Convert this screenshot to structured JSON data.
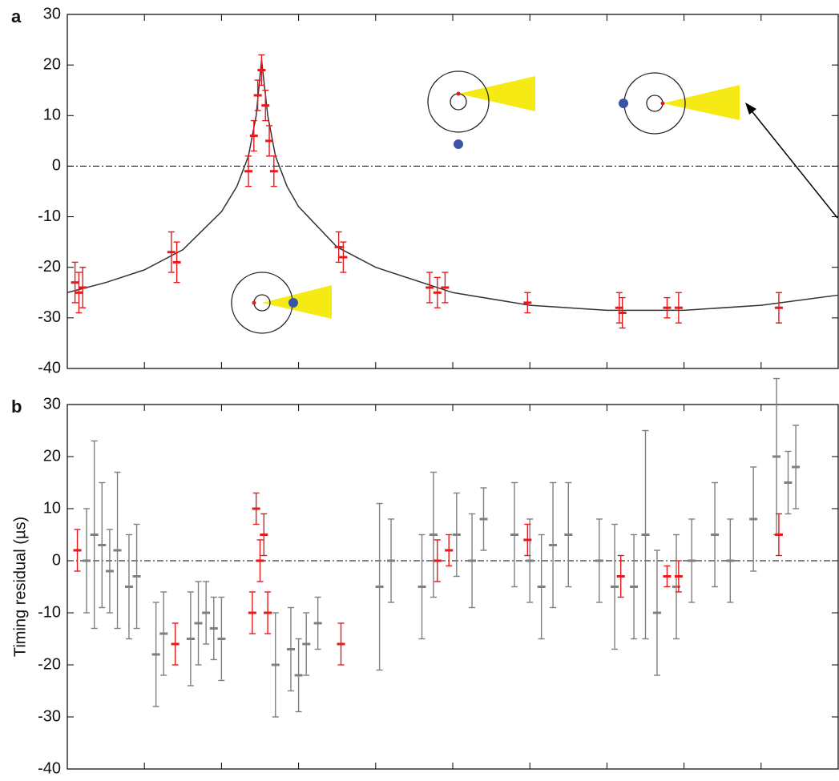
{
  "chart_data": [
    {
      "type": "scatter",
      "panel_label": "a",
      "xlim": [
        0,
        10
      ],
      "xticks": [
        1,
        2,
        3,
        4,
        5,
        6,
        7,
        8,
        9
      ],
      "ylim": [
        -40,
        30
      ],
      "yticks": [
        -40,
        -30,
        -20,
        -10,
        0,
        10,
        20,
        30
      ],
      "series": [
        {
          "mark": "line",
          "color": "#333333",
          "x": [
            0,
            0.5,
            1,
            1.5,
            2,
            2.2,
            2.35,
            2.45,
            2.52,
            2.6,
            2.7,
            2.85,
            3,
            3.5,
            4,
            5,
            6,
            7,
            8,
            9,
            10
          ],
          "values": [
            -25,
            -23,
            -20.5,
            -16.5,
            -9,
            -4,
            2,
            10,
            21,
            10,
            2,
            -4,
            -8,
            -16,
            -20,
            -25,
            -27.5,
            -28.5,
            -28.5,
            -27.5,
            -25.5
          ]
        },
        {
          "mark": "errorbar",
          "color": "#e8191c",
          "x": [
            0.1,
            0.15,
            0.2,
            1.35,
            1.42,
            2.35,
            2.42,
            2.47,
            2.52,
            2.57,
            2.62,
            2.68,
            3.52,
            3.58,
            4.7,
            4.8,
            4.9,
            5.97,
            7.16,
            7.2,
            7.78,
            7.93,
            9.23
          ],
          "values": [
            -23,
            -25,
            -24,
            -17,
            -19,
            -1,
            6,
            14,
            19,
            12,
            5,
            -1,
            -16,
            -18,
            -24,
            -25,
            -24,
            -27,
            -28,
            -29,
            -28,
            -28,
            -28
          ],
          "errors": [
            4,
            4,
            4,
            4,
            4,
            3,
            3,
            3,
            3,
            3,
            3,
            3,
            3,
            3,
            3,
            3,
            3,
            2,
            3,
            3,
            2,
            3,
            3
          ]
        }
      ]
    },
    {
      "type": "scatter",
      "panel_label": "b",
      "ylabel": "Timing residual (µs)",
      "xlim": [
        0,
        10
      ],
      "xticks": [
        1,
        2,
        3,
        4,
        5,
        6,
        7,
        8,
        9
      ],
      "ylim": [
        -40,
        30
      ],
      "yticks": [
        -40,
        -30,
        -20,
        -10,
        0,
        10,
        20,
        30
      ],
      "series": [
        {
          "mark": "errorbar",
          "color": "#7f7f7f",
          "x": [
            0.25,
            0.35,
            0.45,
            0.55,
            0.65,
            0.8,
            0.9,
            1.15,
            1.25,
            1.6,
            1.7,
            1.8,
            1.9,
            2.0,
            2.7,
            2.9,
            3.0,
            3.1,
            3.25,
            4.05,
            4.2,
            4.6,
            4.75,
            5.05,
            5.25,
            5.4,
            5.8,
            6.0,
            6.15,
            6.3,
            6.5,
            6.9,
            7.1,
            7.35,
            7.5,
            7.65,
            7.9,
            8.1,
            8.4,
            8.6,
            8.9,
            9.2,
            9.35,
            9.45
          ],
          "values": [
            0,
            5,
            3,
            -2,
            2,
            -5,
            -3,
            -18,
            -14,
            -15,
            -12,
            -10,
            -13,
            -15,
            -20,
            -17,
            -22,
            -16,
            -12,
            -5,
            0,
            -5,
            5,
            5,
            0,
            8,
            5,
            0,
            -5,
            3,
            5,
            0,
            -5,
            -5,
            5,
            -10,
            -5,
            0,
            5,
            0,
            8,
            20,
            15,
            18
          ],
          "errors": [
            10,
            18,
            12,
            8,
            15,
            10,
            10,
            10,
            8,
            9,
            8,
            6,
            6,
            8,
            10,
            8,
            7,
            6,
            5,
            16,
            8,
            10,
            12,
            8,
            9,
            6,
            10,
            8,
            10,
            12,
            10,
            8,
            12,
            10,
            20,
            12,
            10,
            8,
            10,
            8,
            10,
            15,
            6,
            8
          ]
        },
        {
          "mark": "errorbar",
          "color": "#e8191c",
          "x": [
            0.13,
            1.4,
            2.4,
            2.45,
            2.5,
            2.55,
            2.6,
            3.55,
            4.8,
            4.95,
            5.97,
            7.18,
            7.78,
            7.93,
            9.23
          ],
          "values": [
            2,
            -16,
            -10,
            10,
            0,
            5,
            -10,
            -16,
            0,
            2,
            4,
            -3,
            -3,
            -3,
            5
          ],
          "errors": [
            4,
            4,
            4,
            3,
            4,
            4,
            4,
            4,
            4,
            3,
            3,
            4,
            2,
            3,
            4
          ]
        }
      ]
    }
  ]
}
